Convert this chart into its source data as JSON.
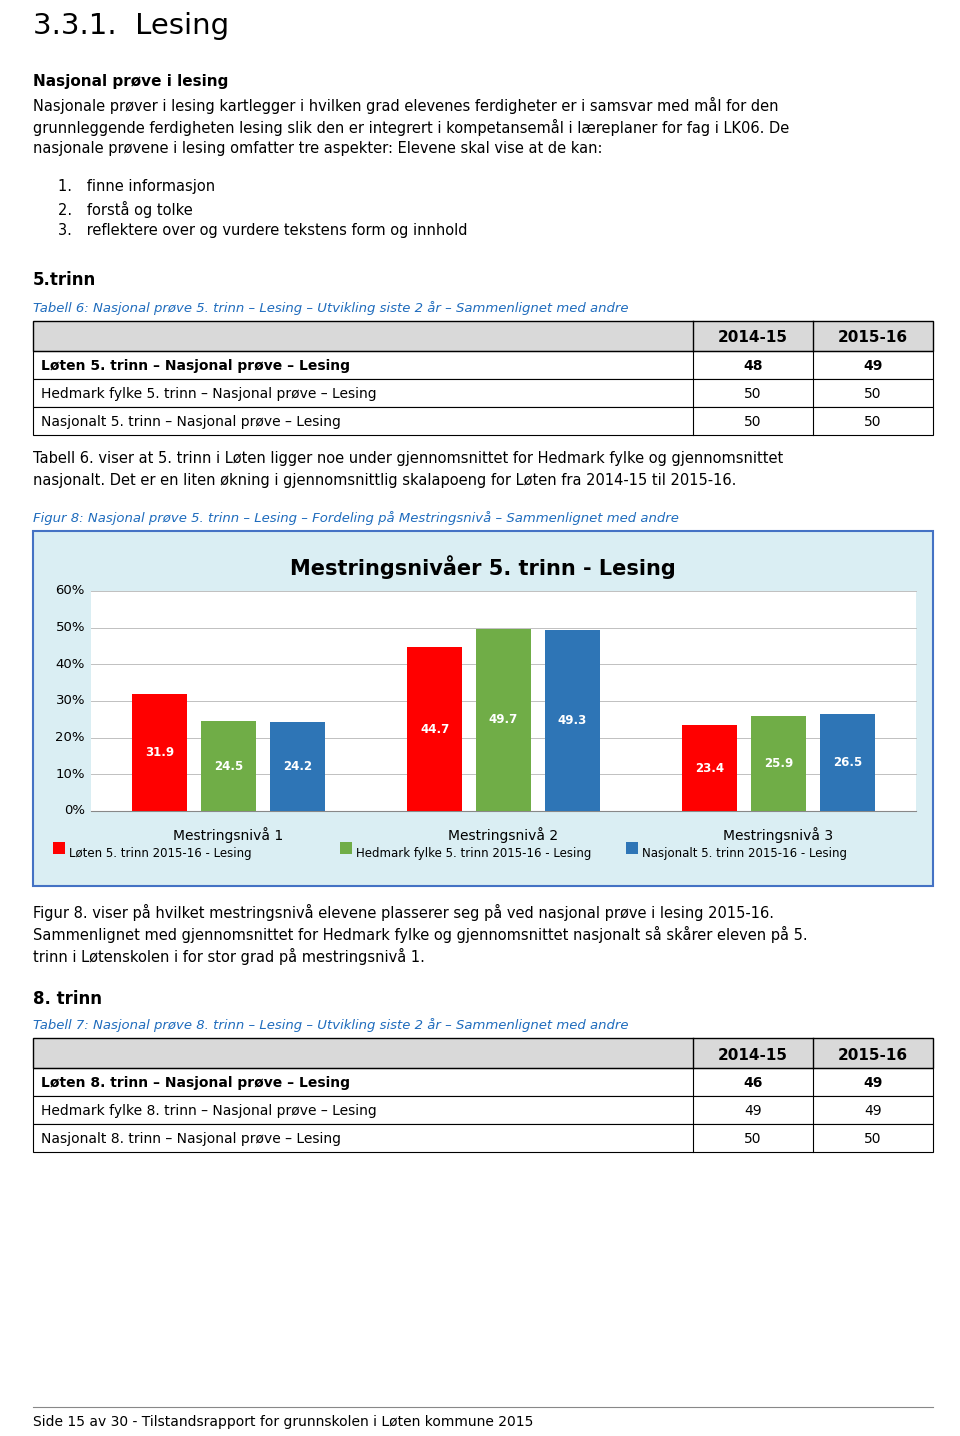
{
  "page_title": "3.3.1.  Lesing",
  "section1_bold": "Nasjonal prøve i lesing",
  "section1_lines": [
    "Nasjonale prøver i lesing kartlegger i hvilken grad elevenes ferdigheter er i samsvar med mål for den",
    "grunnleggende ferdigheten lesing slik den er integrert i kompetansemål i læreplaner for fag i LK06. De",
    "nasjonale prøvene i lesing omfatter tre aspekter: Elevene skal vise at de kan:"
  ],
  "list_items": [
    "finne informasjon",
    "forstå og tolke",
    "reflektere over og vurdere tekstens form og innhold"
  ],
  "section5_title": "5.trinn",
  "tabell6_caption": "Tabell 6: Nasjonal prøve 5. trinn – Lesing – Utvikling siste 2 år – Sammenlignet med andre",
  "table5_headers": [
    "",
    "2014-15",
    "2015-16"
  ],
  "table5_rows": [
    [
      "Løten 5. trinn – Nasjonal prøve – Lesing",
      "48",
      "49"
    ],
    [
      "Hedmark fylke 5. trinn – Nasjonal prøve – Lesing",
      "50",
      "50"
    ],
    [
      "Nasjonalt 5. trinn – Nasjonal prøve – Lesing",
      "50",
      "50"
    ]
  ],
  "tabell6_lines": [
    "Tabell 6. viser at 5. trinn i Løten ligger noe under gjennomsnittet for Hedmark fylke og gjennomsnittet",
    "nasjonalt. Det er en liten økning i gjennomsnittlig skalapoeng for Løten fra 2014-15 til 2015-16."
  ],
  "figur8_caption": "Figur 8: Nasjonal prøve 5. trinn – Lesing – Fordeling på Mestringsnivå – Sammenlignet med andre",
  "chart_title": "Mestringsnivåer 5. trinn - Lesing",
  "chart_categories": [
    "Mestringsnivå 1",
    "Mestringsnivå 2",
    "Mestringsnivå 3"
  ],
  "chart_series": [
    {
      "name": "Løten 5. trinn 2015-16 - Lesing",
      "color": "#FF0000",
      "values": [
        31.9,
        44.7,
        23.4
      ]
    },
    {
      "name": "Hedmark fylke 5. trinn 2015-16 - Lesing",
      "color": "#70AD47",
      "values": [
        24.5,
        49.7,
        25.9
      ]
    },
    {
      "name": "Nasjonalt 5. trinn 2015-16 - Lesing",
      "color": "#2E75B6",
      "values": [
        24.2,
        49.3,
        26.5
      ]
    }
  ],
  "chart_ylim": [
    0,
    60
  ],
  "chart_yticks": [
    0,
    10,
    20,
    30,
    40,
    50,
    60
  ],
  "chart_ytick_labels": [
    "0%",
    "10%",
    "20%",
    "30%",
    "40%",
    "50%",
    "60%"
  ],
  "chart_bg": "#DAEEF3",
  "figur8_lines": [
    "Figur 8. viser på hvilket mestringsnivå elevene plasserer seg på ved nasjonal prøve i lesing 2015-16.",
    "Sammenlignet med gjennomsnittet for Hedmark fylke og gjennomsnittet nasjonalt så skårer eleven på 5.",
    "trinn i Løtenskolen i for stor grad på mestringsnivå 1."
  ],
  "section8_title": "8. trinn",
  "tabell7_caption": "Tabell 7: Nasjonal prøve 8. trinn – Lesing – Utvikling siste 2 år – Sammenlignet med andre",
  "table8_headers": [
    "",
    "2014-15",
    "2015-16"
  ],
  "table8_rows": [
    [
      "Løten 8. trinn – Nasjonal prøve – Lesing",
      "46",
      "49"
    ],
    [
      "Hedmark fylke 8. trinn – Nasjonal prøve – Lesing",
      "49",
      "49"
    ],
    [
      "Nasjonalt 8. trinn – Nasjonal prøve – Lesing",
      "50",
      "50"
    ]
  ],
  "footer_text": "Side 15 av 30 - Tilstandsrapport for grunnskolen i Løten kommune 2015",
  "caption_color": "#1F6CBD",
  "header_bg": "#D9D9D9",
  "table_border_color": "#000000"
}
